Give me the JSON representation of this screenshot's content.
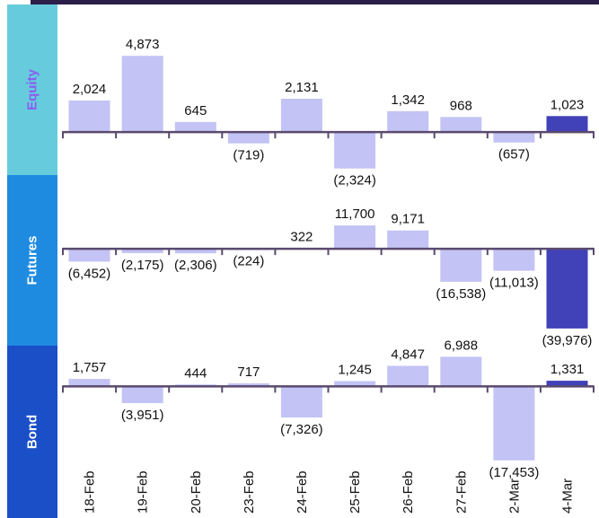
{
  "colors": {
    "bar": "#c3c3f5",
    "bar_highlight": "#4141b8",
    "axis": "#5a4a6e",
    "band_equity": "#66ccdd",
    "band_futures": "#1f8be0",
    "band_bond": "#1a4fc8",
    "label_equity": "#8a5cf0",
    "label_futures": "#ffffff",
    "label_bond": "#ffffff"
  },
  "chart_data": {
    "type": "bar",
    "categories": [
      "18-Feb",
      "19-Feb",
      "20-Feb",
      "23-Feb",
      "24-Feb",
      "25-Feb",
      "26-Feb",
      "27-Feb",
      "2-Mar",
      "4-Mar"
    ],
    "panels": [
      {
        "name": "Equity",
        "values": [
          2024,
          4873,
          645,
          -719,
          2131,
          -2324,
          1342,
          968,
          -657,
          1023
        ],
        "labels": [
          "2,024",
          "4,873",
          "645",
          "(719)",
          "2,131",
          "(2,324)",
          "1,342",
          "968",
          "(657)",
          "1,023"
        ],
        "ylim": [
          -2800,
          5800
        ],
        "highlight_last": true
      },
      {
        "name": "Futures",
        "values": [
          -6452,
          -2175,
          -2306,
          -224,
          322,
          11700,
          9171,
          -16538,
          -11013,
          -39976
        ],
        "labels": [
          "(6,452)",
          "(2,175)",
          "(2,306)",
          "(224)",
          "322",
          "11,700",
          "9,171",
          "(16,538)",
          "(11,013)",
          "(39,976)"
        ],
        "ylim": [
          -40000,
          14000
        ],
        "highlight_last": true
      },
      {
        "name": "Bond",
        "values": [
          1757,
          -3951,
          444,
          717,
          -7326,
          1245,
          4847,
          6988,
          -17453,
          1331
        ],
        "labels": [
          "1,757",
          "(3,951)",
          "444",
          "717",
          "(7,326)",
          "1,245",
          "4,847",
          "6,988",
          "(17,453)",
          "1,331"
        ],
        "ylim": [
          -17500,
          7500
        ],
        "highlight_last": true
      }
    ]
  }
}
